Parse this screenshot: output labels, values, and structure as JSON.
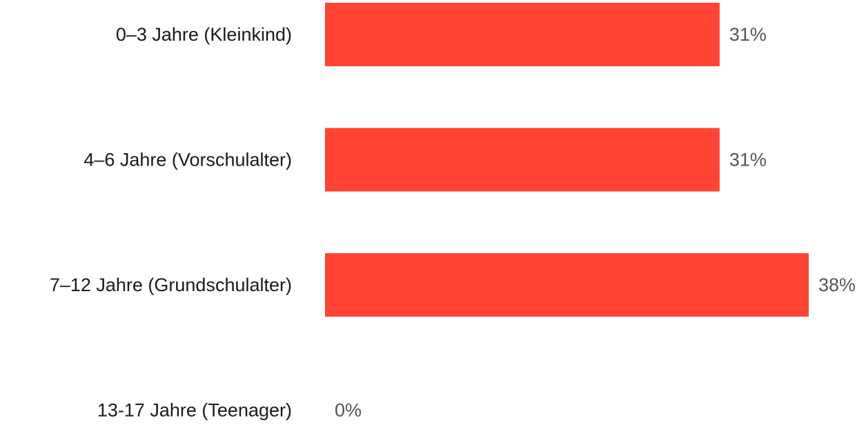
{
  "chart_data": {
    "type": "bar",
    "orientation": "horizontal",
    "categories": [
      "0–3 Jahre (Kleinkind)",
      "4–6 Jahre (Vorschulalter)",
      "7–12 Jahre (Grundschulalter)",
      "13-17 Jahre (Teenager)"
    ],
    "values": [
      31,
      31,
      38,
      0
    ],
    "value_labels": [
      "31%",
      "31%",
      "38%",
      "0%"
    ],
    "xlim": [
      0,
      38
    ],
    "grid": false,
    "bar_color": "#ff4433"
  }
}
